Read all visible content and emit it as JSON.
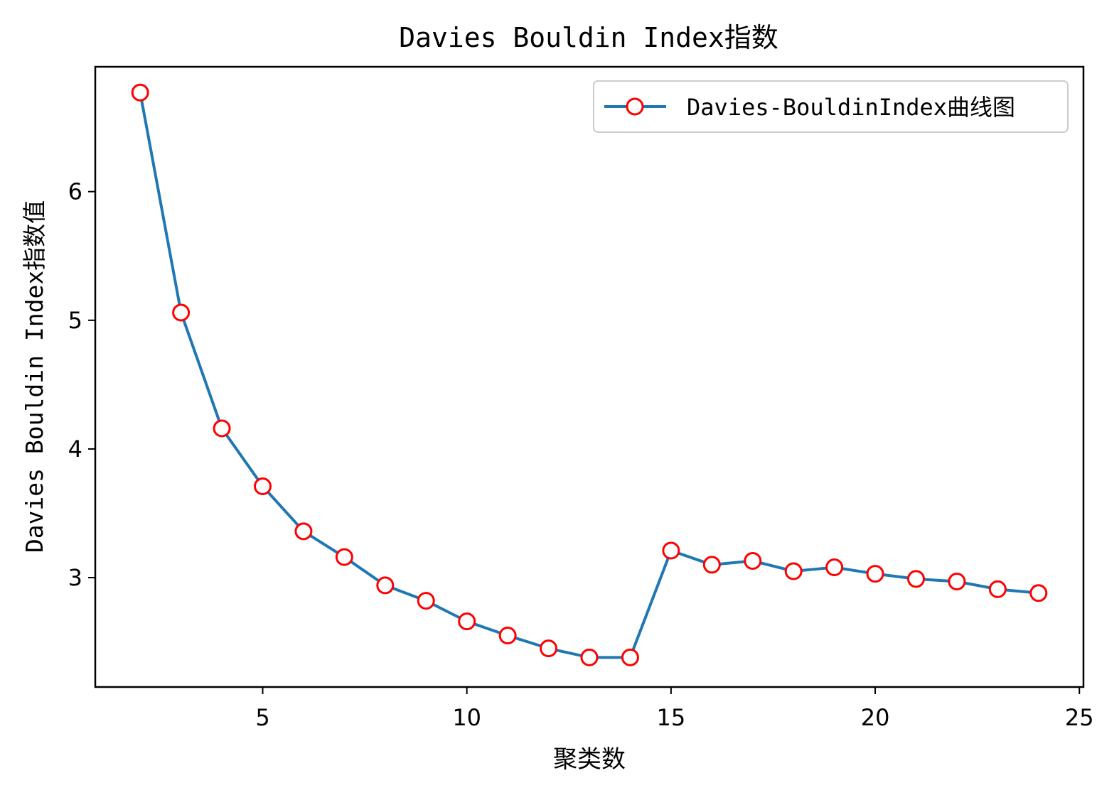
{
  "chart_data": {
    "type": "line",
    "title": "Davies Bouldin Index指数",
    "xlabel": "聚类数",
    "ylabel": "Davies Bouldin Index指数值",
    "xlim": [
      0.9,
      25.1
    ],
    "ylim": [
      2.15,
      6.97
    ],
    "x_ticks": [
      5,
      10,
      15,
      20,
      25
    ],
    "y_ticks": [
      3,
      4,
      5,
      6
    ],
    "grid": false,
    "legend_position": "top-right",
    "series": [
      {
        "name": "Davies-BouldinIndex曲线图",
        "color": "#1f77b4",
        "marker_edge_color": "#ff0000",
        "marker_face_color": "#ffffff",
        "marker": "circle",
        "x": [
          2,
          3,
          4,
          5,
          6,
          7,
          8,
          9,
          10,
          11,
          12,
          13,
          14,
          15,
          16,
          17,
          18,
          19,
          20,
          21,
          22,
          23,
          24
        ],
        "y": [
          6.77,
          5.06,
          4.16,
          3.71,
          3.36,
          3.16,
          2.94,
          2.82,
          2.66,
          2.55,
          2.45,
          2.38,
          2.38,
          3.21,
          3.1,
          3.13,
          3.05,
          3.08,
          3.03,
          2.99,
          2.97,
          2.91,
          2.88
        ]
      }
    ]
  }
}
